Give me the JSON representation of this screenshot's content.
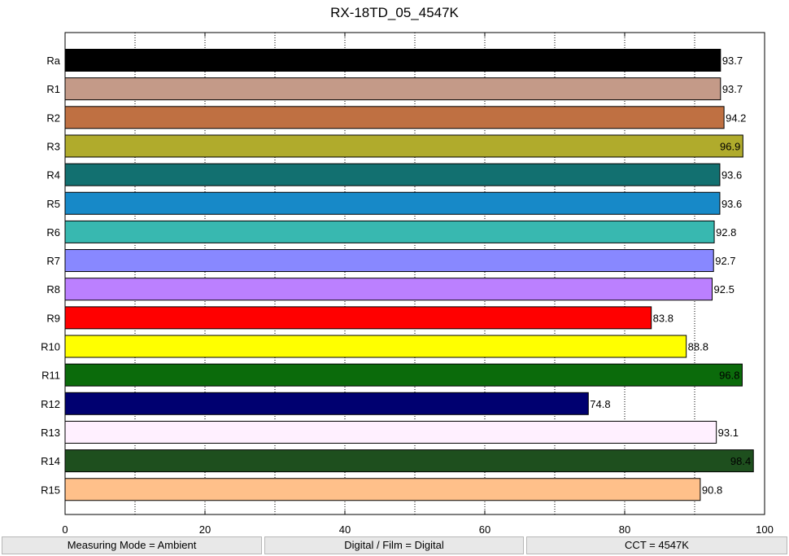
{
  "chart_data": {
    "type": "bar",
    "orientation": "horizontal",
    "title": "RX-18TD_05_4547K",
    "xlabel": "",
    "ylabel": "",
    "xlim": [
      0,
      100
    ],
    "xticks": [
      0,
      20,
      40,
      60,
      80,
      100
    ],
    "grid": "vertical dotted",
    "categories": [
      "Ra",
      "R1",
      "R2",
      "R3",
      "R4",
      "R5",
      "R6",
      "R7",
      "R8",
      "R9",
      "R10",
      "R11",
      "R12",
      "R13",
      "R14",
      "R15"
    ],
    "values": [
      93.7,
      93.7,
      94.2,
      96.9,
      93.6,
      93.6,
      92.8,
      92.7,
      92.5,
      83.8,
      88.8,
      96.8,
      74.8,
      93.1,
      98.4,
      90.8
    ],
    "value_labels": [
      "93.7",
      "93.7",
      "94.2",
      "96.9",
      "93.6",
      "93.6",
      "92.8",
      "92.7",
      "92.5",
      "83.8",
      "88.8",
      "96.8",
      "74.8",
      "93.1",
      "98.4",
      "90.8"
    ],
    "colors": [
      "#000000",
      "#c49a88",
      "#bf7042",
      "#b0ab2c",
      "#127070",
      "#1789c8",
      "#38b8b0",
      "#8888ff",
      "#bb80ff",
      "#ff0000",
      "#ffff00",
      "#0b6b0b",
      "#000070",
      "#fff0ff",
      "#1e4f1e",
      "#ffc08a"
    ]
  },
  "footer": {
    "measuring_mode": "Measuring Mode = Ambient",
    "digital_film": "Digital / Film = Digital",
    "cct": "CCT = 4547K"
  }
}
